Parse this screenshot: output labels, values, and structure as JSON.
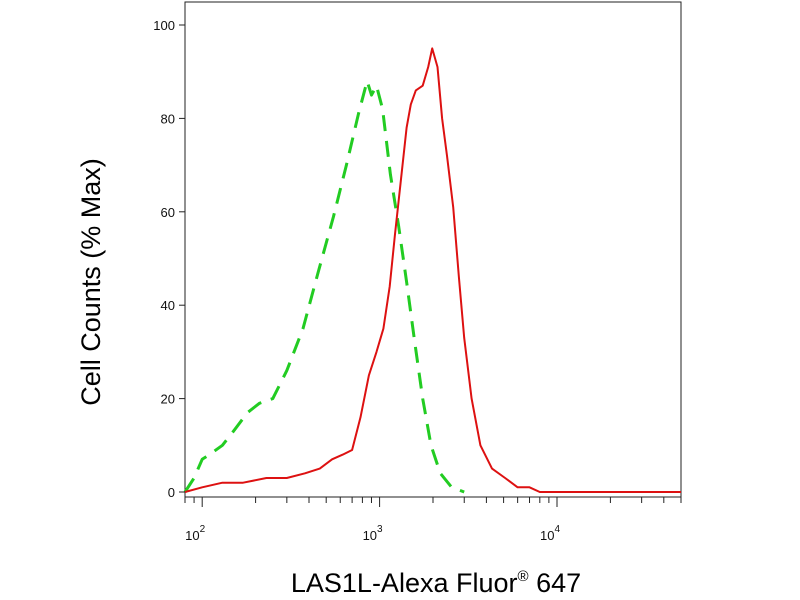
{
  "chart_data": {
    "type": "line",
    "title": "",
    "xlabel": "LAS1L-Alexa Fluor",
    "xlabel_superscript": "®",
    "xlabel_suffix": " 647",
    "ylabel": "Cell Counts (% Max)",
    "x_scale": "log",
    "xlim": [
      80,
      50000
    ],
    "ylim": [
      0,
      100
    ],
    "grid": false,
    "legend": "none",
    "y_ticks": [
      {
        "value": 0,
        "label": "0"
      },
      {
        "value": 20,
        "label": "20"
      },
      {
        "value": 40,
        "label": "40"
      },
      {
        "value": 60,
        "label": "60"
      },
      {
        "value": 80,
        "label": "80"
      },
      {
        "value": 100,
        "label": "100"
      }
    ],
    "x_ticks": [
      {
        "value": 100,
        "base": "10",
        "exp": "2"
      },
      {
        "value": 1000,
        "base": "10",
        "exp": "3"
      },
      {
        "value": 10000,
        "base": "10",
        "exp": "4"
      }
    ],
    "series": [
      {
        "color": "#22cc22",
        "dash": "dashed",
        "points": [
          [
            80,
            0
          ],
          [
            90,
            3
          ],
          [
            100,
            7
          ],
          [
            110,
            8
          ],
          [
            130,
            10
          ],
          [
            150,
            13
          ],
          [
            180,
            17
          ],
          [
            210,
            19
          ],
          [
            250,
            20
          ],
          [
            300,
            26
          ],
          [
            370,
            35
          ],
          [
            450,
            47
          ],
          [
            550,
            59
          ],
          [
            650,
            70
          ],
          [
            760,
            81
          ],
          [
            850,
            88
          ],
          [
            900,
            85
          ],
          [
            960,
            87
          ],
          [
            1040,
            82
          ],
          [
            1150,
            68
          ],
          [
            1280,
            57
          ],
          [
            1420,
            45
          ],
          [
            1580,
            32
          ],
          [
            1750,
            20
          ],
          [
            1950,
            10
          ],
          [
            2200,
            4
          ],
          [
            2550,
            1
          ],
          [
            3000,
            0
          ]
        ]
      },
      {
        "color": "#dd1111",
        "dash": "solid",
        "points": [
          [
            80,
            0
          ],
          [
            100,
            1
          ],
          [
            130,
            2
          ],
          [
            170,
            2
          ],
          [
            230,
            3
          ],
          [
            300,
            3
          ],
          [
            380,
            4
          ],
          [
            460,
            5
          ],
          [
            540,
            7
          ],
          [
            620,
            8
          ],
          [
            700,
            9
          ],
          [
            780,
            16
          ],
          [
            870,
            25
          ],
          [
            960,
            30
          ],
          [
            1050,
            35
          ],
          [
            1140,
            44
          ],
          [
            1220,
            55
          ],
          [
            1320,
            67
          ],
          [
            1420,
            78
          ],
          [
            1500,
            83
          ],
          [
            1600,
            86
          ],
          [
            1750,
            87
          ],
          [
            1880,
            91
          ],
          [
            1980,
            95
          ],
          [
            2120,
            91
          ],
          [
            2250,
            80
          ],
          [
            2400,
            72
          ],
          [
            2600,
            61
          ],
          [
            2800,
            46
          ],
          [
            3000,
            33
          ],
          [
            3300,
            20
          ],
          [
            3700,
            10
          ],
          [
            4300,
            5
          ],
          [
            5100,
            3
          ],
          [
            6000,
            1
          ],
          [
            7000,
            1
          ],
          [
            8000,
            0
          ],
          [
            10000,
            0
          ],
          [
            20000,
            0
          ],
          [
            50000,
            0
          ]
        ]
      }
    ]
  }
}
